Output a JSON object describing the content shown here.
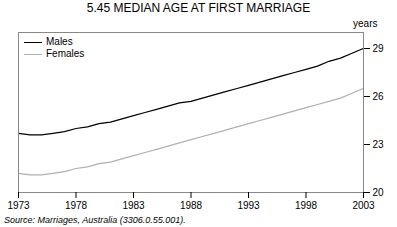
{
  "chart_data": {
    "type": "line",
    "title": "5.45   MEDIAN AGE AT FIRST MARRIAGE",
    "ylabel": "years",
    "source": "Source: Marriages, Australia (3306.0.55.001).",
    "x": [
      1973,
      1974,
      1975,
      1976,
      1977,
      1978,
      1979,
      1980,
      1981,
      1982,
      1983,
      1984,
      1985,
      1986,
      1987,
      1988,
      1989,
      1990,
      1991,
      1992,
      1993,
      1994,
      1995,
      1996,
      1997,
      1998,
      1999,
      2000,
      2001,
      2002,
      2003
    ],
    "series": [
      {
        "name": "Males",
        "color": "#000000",
        "values": [
          23.7,
          23.6,
          23.6,
          23.7,
          23.8,
          24.0,
          24.1,
          24.3,
          24.4,
          24.6,
          24.8,
          25.0,
          25.2,
          25.4,
          25.6,
          25.7,
          25.9,
          26.1,
          26.3,
          26.5,
          26.7,
          26.9,
          27.1,
          27.3,
          27.5,
          27.7,
          27.9,
          28.2,
          28.4,
          28.7,
          29.0
        ]
      },
      {
        "name": "Females",
        "color": "#b0b0b0",
        "values": [
          21.2,
          21.1,
          21.1,
          21.2,
          21.3,
          21.5,
          21.6,
          21.8,
          21.9,
          22.1,
          22.3,
          22.5,
          22.7,
          22.9,
          23.1,
          23.3,
          23.5,
          23.7,
          23.9,
          24.1,
          24.3,
          24.5,
          24.7,
          24.9,
          25.1,
          25.3,
          25.5,
          25.7,
          25.9,
          26.2,
          26.5
        ]
      }
    ],
    "xlim": [
      1973,
      2003
    ],
    "ylim": [
      20,
      30
    ],
    "xticks": [
      1973,
      1978,
      1983,
      1988,
      1993,
      1998,
      2003
    ],
    "yticks": [
      20,
      23,
      26,
      29
    ],
    "legend": "upper left"
  }
}
